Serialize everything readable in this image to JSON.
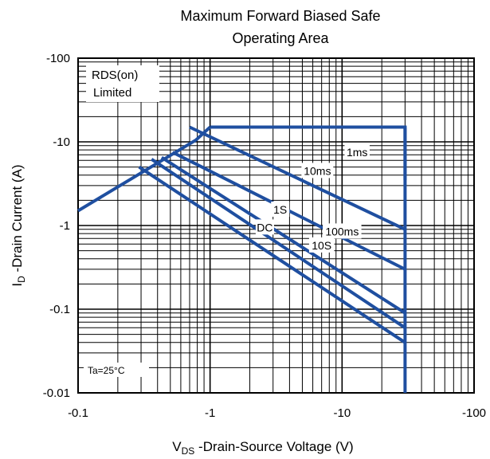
{
  "chart_data": {
    "type": "line",
    "title_line1": "Maximum Forward Biased Safe",
    "title_line2": "Operating Area",
    "xlabel_main": "V",
    "xlabel_sub": "DS",
    "xlabel_rest": " -Drain-Source Voltage (V)",
    "ylabel_main": "I",
    "ylabel_sub": "D",
    "ylabel_rest": " -Drain Current (A)",
    "x_scale": "log",
    "y_scale": "log",
    "xlim": [
      -0.1,
      -100
    ],
    "ylim": [
      -0.01,
      -100
    ],
    "x_ticks": [
      {
        "value": -0.1,
        "label": "-0.1"
      },
      {
        "value": -1,
        "label": "-1"
      },
      {
        "value": -10,
        "label": "-10"
      },
      {
        "value": -100,
        "label": "-100"
      }
    ],
    "y_ticks": [
      {
        "value": -100,
        "label": "-100"
      },
      {
        "value": -10,
        "label": "-10"
      },
      {
        "value": -1,
        "label": "-1"
      },
      {
        "value": -0.1,
        "label": "-0.1"
      },
      {
        "value": -0.01,
        "label": "-0.01"
      }
    ],
    "grid": true,
    "line_color": "#1f4fa0",
    "annotations": {
      "rds_line1": "RDS(on)",
      "rds_line2": "Limited",
      "ta": "Ta=25°C"
    },
    "series": [
      {
        "name": "1ms",
        "points": [
          [
            -1.0,
            -15
          ],
          [
            -30,
            -15
          ],
          [
            -30,
            -3.5
          ]
        ],
        "label_at": [
          -13,
          -7.5
        ]
      },
      {
        "name": "10ms",
        "points": [
          [
            -0.7,
            -15
          ],
          [
            -30,
            -0.9
          ]
        ],
        "label_at": [
          -6.5,
          -4.5
        ]
      },
      {
        "name": "100ms",
        "points": [
          [
            -0.52,
            -7.5
          ],
          [
            -30,
            -0.3
          ]
        ],
        "label_at": [
          -10,
          -0.85
        ]
      },
      {
        "name": "1S",
        "points": [
          [
            -0.43,
            -6.5
          ],
          [
            -30,
            -0.09
          ]
        ],
        "label_at": [
          -3.4,
          -1.55
        ]
      },
      {
        "name": "10S",
        "points": [
          [
            -0.36,
            -6.2
          ],
          [
            -30,
            -0.06
          ]
        ],
        "label_at": [
          -7.0,
          -0.58
        ]
      },
      {
        "name": "DC",
        "points": [
          [
            -0.29,
            -5.0
          ],
          [
            -30,
            -0.04
          ]
        ],
        "label_at": [
          -2.6,
          -0.95
        ]
      },
      {
        "name": "",
        "points": [
          [
            -0.1,
            -1.5
          ],
          [
            -0.78,
            -10.5
          ],
          [
            -1.0,
            -15
          ]
        ],
        "label_at": null
      },
      {
        "name": "",
        "points": [
          [
            -30,
            -15
          ],
          [
            -30,
            -0.01
          ]
        ],
        "label_at": null
      }
    ]
  }
}
